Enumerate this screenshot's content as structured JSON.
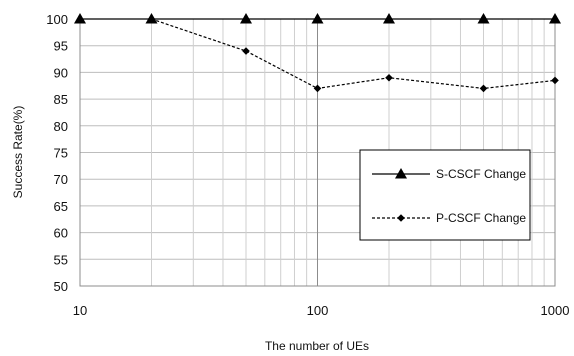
{
  "chart_data": {
    "type": "line",
    "xlabel": "The number of UEs",
    "ylabel": "Success Rate(%)",
    "x_scale": "log",
    "xlim": [
      10,
      1000
    ],
    "ylim": [
      50,
      100
    ],
    "x_ticks": [
      "10",
      "100",
      "1000"
    ],
    "y_ticks": [
      "50",
      "55",
      "60",
      "65",
      "70",
      "75",
      "80",
      "85",
      "90",
      "95",
      "100"
    ],
    "grid": true,
    "legend_position": "right",
    "series": [
      {
        "name": "S-CSCF Change",
        "marker": "triangle",
        "line_style": "solid",
        "color": "#000000",
        "x": [
          10,
          20,
          50,
          100,
          200,
          500,
          1000
        ],
        "y": [
          100,
          100,
          100,
          100,
          100,
          100,
          100
        ]
      },
      {
        "name": "P-CSCF Change",
        "marker": "diamond",
        "line_style": "dashed",
        "color": "#000000",
        "x": [
          20,
          50,
          100,
          200,
          500,
          1000
        ],
        "y": [
          100,
          94,
          87,
          89,
          87,
          88.5
        ]
      }
    ]
  }
}
